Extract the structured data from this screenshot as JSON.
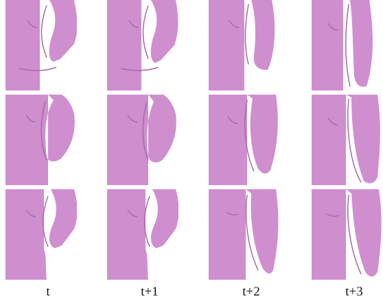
{
  "figure": {
    "column_labels": [
      "t",
      "t+1",
      "t+2",
      "t+3"
    ],
    "rows": 3,
    "mesh_color": "#cf8fcf",
    "mesh_shade": "#a869a8",
    "background": "#ffffff"
  }
}
